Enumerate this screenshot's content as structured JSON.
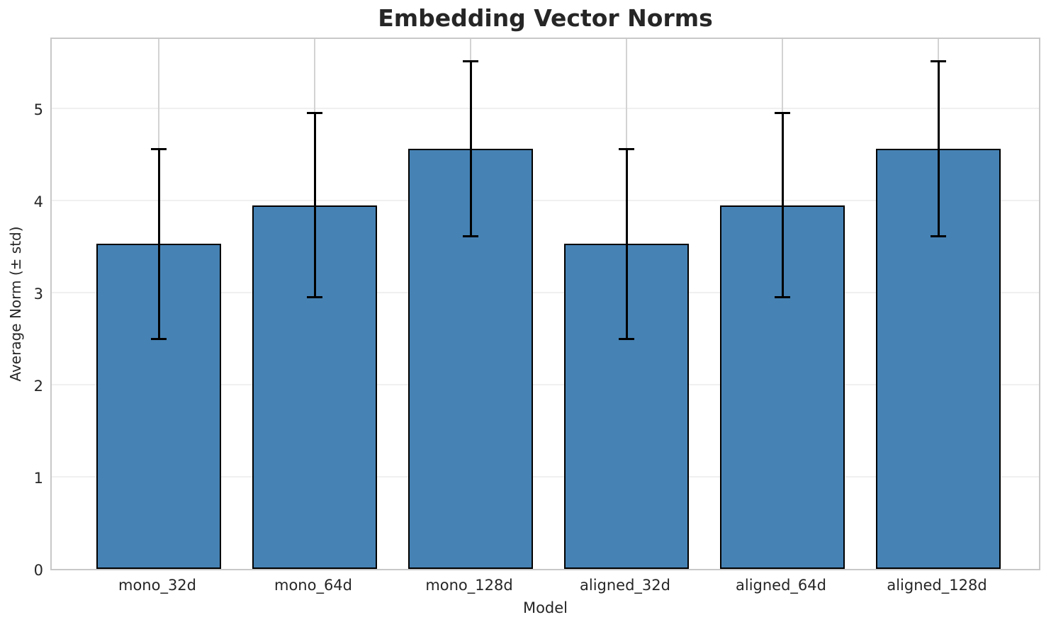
{
  "chart_data": {
    "type": "bar",
    "title": "Embedding Vector Norms",
    "xlabel": "Model",
    "ylabel": "Average Norm (± std)",
    "categories": [
      "mono_32d",
      "mono_64d",
      "mono_128d",
      "aligned_32d",
      "aligned_64d",
      "aligned_128d"
    ],
    "values": [
      3.53,
      3.95,
      4.56,
      3.53,
      3.95,
      4.56
    ],
    "errors": [
      1.03,
      1.0,
      0.95,
      1.03,
      1.0,
      0.95
    ],
    "yticks": [
      0,
      1,
      2,
      3,
      4,
      5
    ],
    "ylim": [
      0,
      5.785
    ],
    "grid": true,
    "legend": "none",
    "colors": {
      "bar_fill": "#4682b4",
      "bar_edge": "#000000",
      "error_bar": "#000000",
      "grid_horizontal": "#f0f0f0",
      "grid_vertical": "#d3d3d3",
      "spine": "#c8c8c8",
      "text": "#262626",
      "background": "#ffffff"
    }
  }
}
